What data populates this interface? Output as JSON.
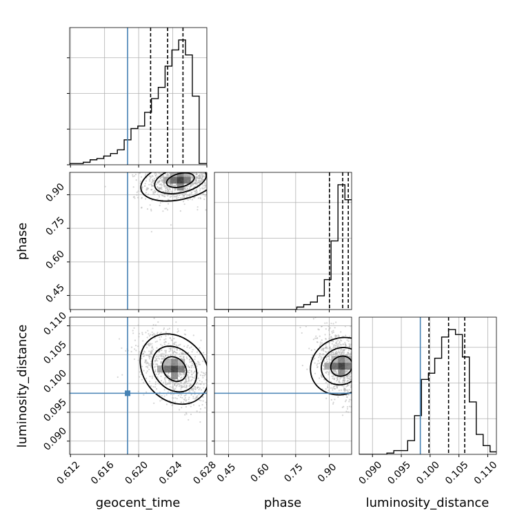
{
  "chart_data": {
    "type": "corner",
    "parameters": [
      "geocent_time",
      "phase",
      "luminosity_distance"
    ],
    "colors": {
      "truth": "#4682b4",
      "hist": "#000000",
      "grid": "#b0b0b0",
      "points": "#b0b0b0"
    },
    "truths": {
      "geocent_time": 0.6187,
      "luminosity_distance": 0.0983
    },
    "ranges": {
      "geocent_time": [
        0.6119,
        0.628
      ],
      "phase": [
        0.387,
        1.0
      ],
      "luminosity_distance": [
        0.0877,
        0.1115
      ]
    },
    "ticks": {
      "geocent_time": [
        "0.612",
        "0.616",
        "0.620",
        "0.624",
        "0.628"
      ],
      "phase": [
        "0.45",
        "0.60",
        "0.75",
        "0.90"
      ],
      "luminosity_distance": [
        "0.090",
        "0.095",
        "0.100",
        "0.105",
        "0.110"
      ]
    },
    "diag_tick_fracs": [
      0.0,
      0.26,
      0.52,
      0.78
    ],
    "quantiles": {
      "geocent_time": [
        0.6214,
        0.6234,
        0.6252
      ],
      "phase": [
        0.901,
        0.96,
        0.985
      ],
      "luminosity_distance": [
        0.0998,
        0.1032,
        0.106
      ]
    },
    "hist_1d": {
      "geocent_time": {
        "edges": [
          0.6119,
          0.6127,
          0.6135,
          0.6143,
          0.6151,
          0.6159,
          0.6167,
          0.6175,
          0.6183,
          0.6191,
          0.6199,
          0.6207,
          0.6215,
          0.6223,
          0.6231,
          0.6239,
          0.6247,
          0.6255,
          0.6263,
          0.6271,
          0.628
        ],
        "heights": [
          0.01,
          0.01,
          0.02,
          0.04,
          0.05,
          0.07,
          0.09,
          0.12,
          0.2,
          0.29,
          0.31,
          0.42,
          0.53,
          0.62,
          0.79,
          0.92,
          1.0,
          0.88,
          0.55,
          0.01
        ]
      },
      "phase": {
        "edges": [
          0.387,
          0.418,
          0.448,
          0.479,
          0.51,
          0.54,
          0.571,
          0.602,
          0.632,
          0.663,
          0.694,
          0.724,
          0.755,
          0.786,
          0.816,
          0.847,
          0.878,
          0.908,
          0.939,
          0.97,
          1.0
        ],
        "heights": [
          0.0,
          0.0,
          0.0,
          0.0,
          0.0,
          0.0,
          0.0,
          0.0,
          0.0,
          0.0,
          0.0,
          0.0,
          0.02,
          0.04,
          0.06,
          0.11,
          0.24,
          0.55,
          1.0,
          0.88
        ]
      },
      "luminosity_distance": {
        "edges": [
          0.0877,
          0.0889,
          0.0901,
          0.0913,
          0.0925,
          0.0937,
          0.0949,
          0.0961,
          0.0973,
          0.0985,
          0.0997,
          0.1008,
          0.102,
          0.1032,
          0.1044,
          0.1056,
          0.1068,
          0.108,
          0.1092,
          0.1104,
          0.1115
        ],
        "heights": [
          0.0,
          0.0,
          0.0,
          0.0,
          0.01,
          0.03,
          0.03,
          0.11,
          0.31,
          0.6,
          0.65,
          0.77,
          0.94,
          1.0,
          0.96,
          0.78,
          0.42,
          0.16,
          0.07,
          0.02
        ]
      }
    },
    "joint": [
      {
        "x": "geocent_time",
        "y": "phase",
        "mode": [
          0.6249,
          0.965
        ],
        "sx": 0.0019,
        "sy": 0.045,
        "rho": 0.25
      },
      {
        "x": "geocent_time",
        "y": "luminosity_distance",
        "mode": [
          0.6242,
          0.1025
        ],
        "sx": 0.0018,
        "sy": 0.0028,
        "rho": -0.45
      },
      {
        "x": "phase",
        "y": "luminosity_distance",
        "mode": [
          0.955,
          0.103
        ],
        "sx": 0.05,
        "sy": 0.0029,
        "rho": -0.5
      }
    ]
  }
}
